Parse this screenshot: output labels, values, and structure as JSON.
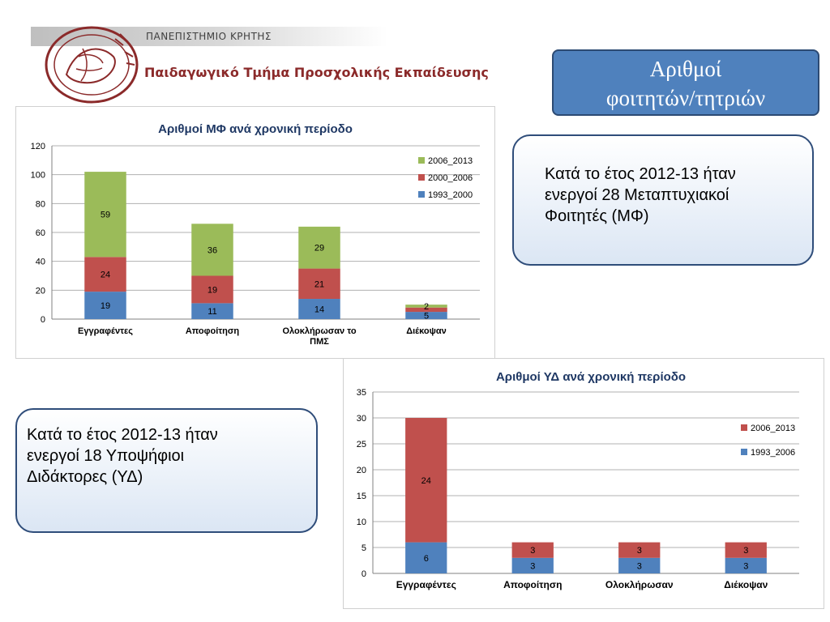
{
  "header": {
    "university": "ΠΑΝΕΠΙΣΤΗΜΙΟ ΚΡΗΤΗΣ",
    "department": "Παιδαγωγικό Τμήμα  Προσχολικής Εκπαίδευσης"
  },
  "title_box": {
    "line1": "Αριθμοί",
    "line2": "φοιτητών/τητριών"
  },
  "info1": {
    "line1": "Κατά το έτος 2012-13 ήταν",
    "line2": "ενεργοί 28 Μεταπτυχιακοί",
    "line3": "Φοιτητές (ΜΦ)"
  },
  "info2": {
    "line1": "Κατά το έτος 2012-13 ήταν",
    "line2": "ενεργοί  18 Υποψήφιοι",
    "line3": "Διδάκτορες (ΥΔ)"
  },
  "chart_data": [
    {
      "type": "bar",
      "stacked": true,
      "title": "Αριθμοί ΜΦ ανά χρονική περίοδο",
      "categories": [
        [
          "Εγγραφέντες"
        ],
        [
          "Αποφοίτηση"
        ],
        [
          "Ολοκλήρωσαν το",
          "ΠΜΣ"
        ],
        [
          "Διέκοψαν"
        ]
      ],
      "ylim": [
        0,
        120
      ],
      "yticks": [
        0,
        20,
        40,
        60,
        80,
        100,
        120
      ],
      "grid": true,
      "legend": "right",
      "series": [
        {
          "name": "1993_2000",
          "color": "#4f81bd",
          "values": [
            19,
            11,
            14,
            5
          ]
        },
        {
          "name": "2000_2006",
          "color": "#c0504d",
          "values": [
            24,
            19,
            21,
            3
          ]
        },
        {
          "name": "2006_2013",
          "color": "#9bbb59",
          "values": [
            59,
            36,
            29,
            2
          ]
        }
      ],
      "labels": [
        [
          "19",
          "11",
          "14",
          "5"
        ],
        [
          "24",
          "19",
          "21",
          ""
        ],
        [
          "59",
          "36",
          "29",
          "2"
        ]
      ]
    },
    {
      "type": "bar",
      "stacked": true,
      "title": "Αριθμοί ΥΔ ανά χρονική περίοδο",
      "categories": [
        [
          "Εγγραφέντες"
        ],
        [
          "Αποφοίτηση"
        ],
        [
          "Ολοκλήρωσαν"
        ],
        [
          "Διέκοψαν"
        ]
      ],
      "ylim": [
        0,
        35
      ],
      "yticks": [
        0,
        5,
        10,
        15,
        20,
        25,
        30,
        35
      ],
      "grid": true,
      "legend": "right",
      "series": [
        {
          "name": "1993_2006",
          "color": "#4f81bd",
          "values": [
            6,
            3,
            3,
            3
          ]
        },
        {
          "name": "2006_2013",
          "color": "#c0504d",
          "values": [
            24,
            3,
            3,
            3
          ]
        }
      ],
      "labels": [
        [
          "6",
          "3",
          "3",
          "3"
        ],
        [
          "24",
          "3",
          "3",
          "3"
        ]
      ]
    }
  ]
}
